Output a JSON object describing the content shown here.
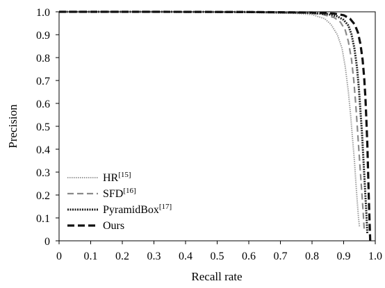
{
  "chart_data": {
    "type": "line",
    "title": "",
    "xlabel": "Recall rate",
    "ylabel": "Precision",
    "xlim": [
      0,
      1.0
    ],
    "ylim": [
      0,
      1.0
    ],
    "grid": false,
    "legend_position": "bottom-left",
    "x_ticks": [
      "0",
      "0.1",
      "0.2",
      "0.3",
      "0.4",
      "0.5",
      "0.6",
      "0.7",
      "0.8",
      "0.9",
      "1.0"
    ],
    "y_ticks": [
      "0",
      "0.1",
      "0.2",
      "0.3",
      "0.4",
      "0.5",
      "0.6",
      "0.7",
      "0.8",
      "0.9",
      "1.0"
    ],
    "series": [
      {
        "name": "HR",
        "ref": "[15]",
        "color": "#9a9a9a",
        "style": "dotted",
        "points": [
          [
            0,
            1.0
          ],
          [
            0.3,
            1.0
          ],
          [
            0.6,
            0.997
          ],
          [
            0.75,
            0.993
          ],
          [
            0.8,
            0.988
          ],
          [
            0.84,
            0.97
          ],
          [
            0.86,
            0.945
          ],
          [
            0.88,
            0.9
          ],
          [
            0.895,
            0.84
          ],
          [
            0.905,
            0.76
          ],
          [
            0.915,
            0.65
          ],
          [
            0.922,
            0.55
          ],
          [
            0.928,
            0.45
          ],
          [
            0.934,
            0.35
          ],
          [
            0.939,
            0.25
          ],
          [
            0.943,
            0.17
          ],
          [
            0.947,
            0.1
          ],
          [
            0.95,
            0.06
          ]
        ]
      },
      {
        "name": "SFD",
        "ref": "[16]",
        "color": "#8a8a8a",
        "style": "dashed",
        "points": [
          [
            0,
            1.0
          ],
          [
            0.3,
            1.0
          ],
          [
            0.6,
            0.998
          ],
          [
            0.78,
            0.995
          ],
          [
            0.83,
            0.99
          ],
          [
            0.87,
            0.975
          ],
          [
            0.89,
            0.955
          ],
          [
            0.905,
            0.92
          ],
          [
            0.915,
            0.87
          ],
          [
            0.925,
            0.79
          ],
          [
            0.932,
            0.7
          ],
          [
            0.938,
            0.6
          ],
          [
            0.943,
            0.5
          ],
          [
            0.948,
            0.4
          ],
          [
            0.953,
            0.3
          ],
          [
            0.958,
            0.2
          ],
          [
            0.962,
            0.12
          ],
          [
            0.965,
            0.05
          ]
        ]
      },
      {
        "name": "PyramidBox",
        "ref": "[17]",
        "color": "#222222",
        "style": "dotted",
        "points": [
          [
            0,
            1.0
          ],
          [
            0.3,
            1.0
          ],
          [
            0.6,
            0.999
          ],
          [
            0.78,
            0.996
          ],
          [
            0.85,
            0.99
          ],
          [
            0.88,
            0.98
          ],
          [
            0.9,
            0.965
          ],
          [
            0.915,
            0.94
          ],
          [
            0.925,
            0.9
          ],
          [
            0.934,
            0.84
          ],
          [
            0.942,
            0.76
          ],
          [
            0.948,
            0.67
          ],
          [
            0.953,
            0.57
          ],
          [
            0.958,
            0.47
          ],
          [
            0.962,
            0.37
          ],
          [
            0.966,
            0.27
          ],
          [
            0.97,
            0.17
          ],
          [
            0.973,
            0.09
          ],
          [
            0.975,
            0.03
          ]
        ]
      },
      {
        "name": "Ours",
        "ref": "",
        "color": "#111111",
        "style": "dashed-bold",
        "points": [
          [
            0,
            1.0
          ],
          [
            0.3,
            1.0
          ],
          [
            0.6,
            0.999
          ],
          [
            0.8,
            0.997
          ],
          [
            0.87,
            0.992
          ],
          [
            0.9,
            0.985
          ],
          [
            0.92,
            0.97
          ],
          [
            0.935,
            0.945
          ],
          [
            0.945,
            0.91
          ],
          [
            0.953,
            0.86
          ],
          [
            0.96,
            0.79
          ],
          [
            0.965,
            0.71
          ],
          [
            0.969,
            0.62
          ],
          [
            0.972,
            0.52
          ],
          [
            0.975,
            0.42
          ],
          [
            0.977,
            0.32
          ],
          [
            0.979,
            0.22
          ],
          [
            0.981,
            0.12
          ],
          [
            0.983,
            0.04
          ],
          [
            0.984,
            0.0
          ]
        ]
      }
    ]
  }
}
